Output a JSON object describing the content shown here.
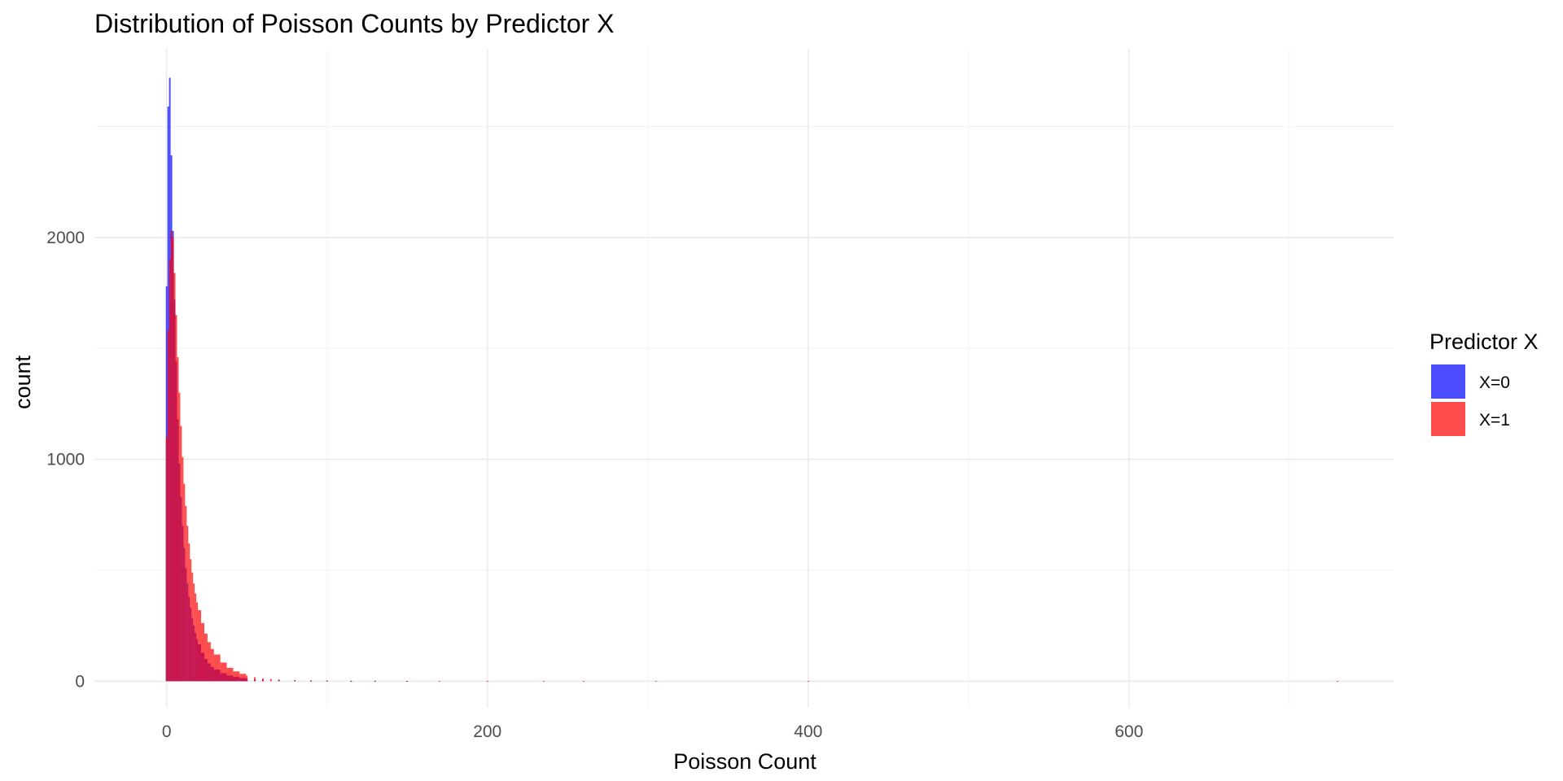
{
  "chart_data": {
    "type": "bar",
    "subtype": "overlaid-histogram",
    "title": "Distribution of Poisson Counts by Predictor X",
    "xlabel": "Poisson Count",
    "ylabel": "count",
    "xlim": [
      -45,
      765
    ],
    "ylim": [
      -120,
      2850
    ],
    "x_ticks": [
      0,
      200,
      400,
      600
    ],
    "y_ticks": [
      0,
      1000,
      2000
    ],
    "grid": true,
    "legend": {
      "title": "Predictor X",
      "placement": "right"
    },
    "binwidth": 1,
    "series": [
      {
        "name": "X=0",
        "color": "#0000ff",
        "opacity": 0.7,
        "bins": [
          [
            0,
            1780
          ],
          [
            1,
            2590
          ],
          [
            2,
            2720
          ],
          [
            3,
            2370
          ],
          [
            4,
            2030
          ],
          [
            5,
            1720
          ],
          [
            6,
            1440
          ],
          [
            7,
            1180
          ],
          [
            8,
            980
          ],
          [
            9,
            830
          ],
          [
            10,
            700
          ],
          [
            11,
            600
          ],
          [
            12,
            510
          ],
          [
            13,
            440
          ],
          [
            14,
            380
          ],
          [
            15,
            330
          ],
          [
            16,
            285
          ],
          [
            17,
            250
          ],
          [
            18,
            218
          ],
          [
            19,
            190
          ],
          [
            20,
            166
          ],
          [
            22,
            128
          ],
          [
            24,
            100
          ],
          [
            26,
            80
          ],
          [
            28,
            64
          ],
          [
            30,
            52
          ],
          [
            34,
            36
          ],
          [
            38,
            26
          ],
          [
            42,
            19
          ],
          [
            46,
            14
          ],
          [
            50,
            11
          ],
          [
            55,
            8
          ],
          [
            60,
            6
          ],
          [
            70,
            4
          ],
          [
            80,
            3
          ],
          [
            90,
            2
          ],
          [
            100,
            2
          ],
          [
            115,
            1
          ],
          [
            130,
            1
          ],
          [
            150,
            1
          ]
        ]
      },
      {
        "name": "X=1",
        "color": "#ff0000",
        "opacity": 0.7,
        "bins": [
          [
            0,
            1100
          ],
          [
            1,
            1580
          ],
          [
            2,
            1900
          ],
          [
            3,
            2030
          ],
          [
            4,
            2000
          ],
          [
            5,
            1840
          ],
          [
            6,
            1650
          ],
          [
            7,
            1460
          ],
          [
            8,
            1300
          ],
          [
            9,
            1150
          ],
          [
            10,
            1010
          ],
          [
            11,
            890
          ],
          [
            12,
            790
          ],
          [
            13,
            700
          ],
          [
            14,
            620
          ],
          [
            15,
            550
          ],
          [
            16,
            490
          ],
          [
            17,
            440
          ],
          [
            18,
            395
          ],
          [
            19,
            355
          ],
          [
            20,
            320
          ],
          [
            22,
            262
          ],
          [
            24,
            214
          ],
          [
            26,
            176
          ],
          [
            28,
            145
          ],
          [
            30,
            120
          ],
          [
            34,
            84
          ],
          [
            38,
            60
          ],
          [
            42,
            44
          ],
          [
            46,
            33
          ],
          [
            50,
            25
          ],
          [
            55,
            18
          ],
          [
            60,
            13
          ],
          [
            65,
            10
          ],
          [
            70,
            8
          ],
          [
            80,
            5
          ],
          [
            90,
            4
          ],
          [
            100,
            3
          ],
          [
            115,
            2
          ],
          [
            130,
            2
          ],
          [
            150,
            1
          ],
          [
            170,
            1
          ],
          [
            200,
            1
          ],
          [
            235,
            1
          ],
          [
            260,
            1
          ],
          [
            305,
            1
          ],
          [
            400,
            1
          ],
          [
            730,
            1
          ]
        ]
      }
    ]
  }
}
